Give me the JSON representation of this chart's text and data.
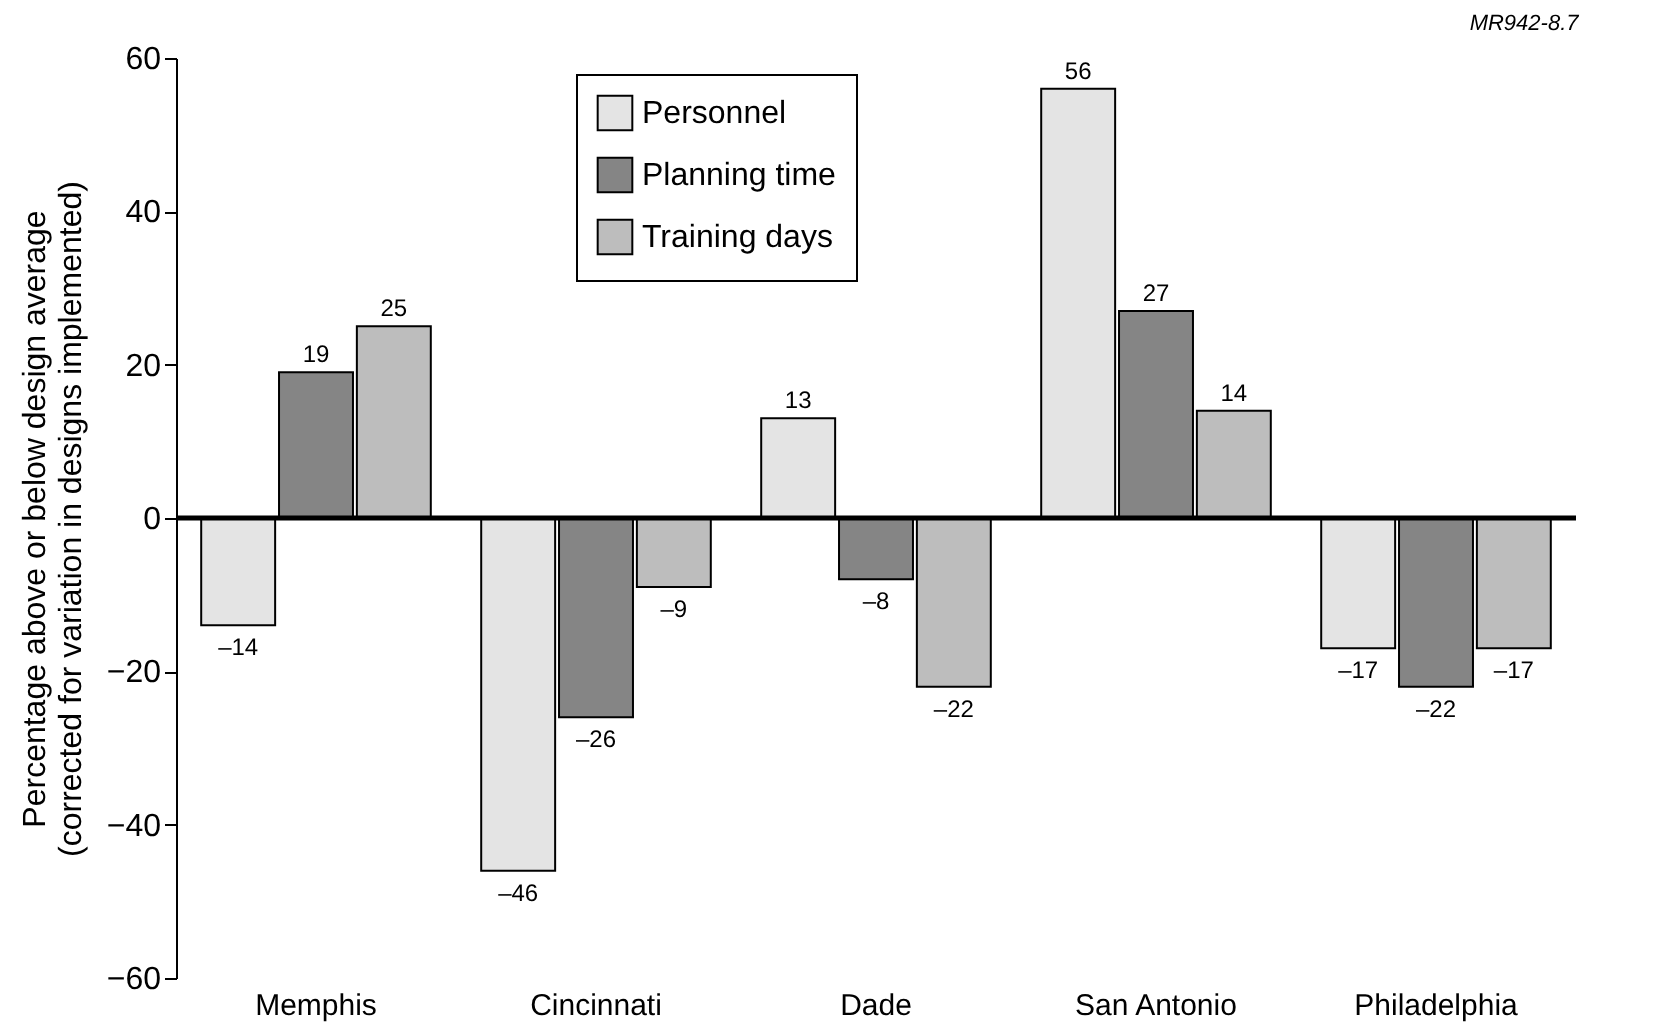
{
  "chart_data": {
    "type": "bar",
    "ylabel": "Percentage above or below design average\n(corrected for variation in designs implemented)",
    "categories": [
      "Memphis",
      "Cincinnati",
      "Dade",
      "San Antonio",
      "Philadelphia"
    ],
    "series": [
      {
        "name": "Personnel",
        "color": "#e4e4e4",
        "values": [
          -14,
          -46,
          13,
          56,
          -17
        ],
        "value_labels": [
          "–14",
          "–46",
          "13",
          "56",
          "–17"
        ]
      },
      {
        "name": "Planning time",
        "color": "#858585",
        "values": [
          19,
          -26,
          -8,
          27,
          -22
        ],
        "value_labels": [
          "19",
          "–26",
          "–8",
          "27",
          "–22"
        ]
      },
      {
        "name": "Training days",
        "color": "#bdbdbd",
        "values": [
          25,
          -9,
          -22,
          14,
          -17
        ],
        "value_labels": [
          "25",
          "–9",
          "–22",
          "14",
          "–17"
        ]
      }
    ],
    "ylim": [
      -60,
      60
    ],
    "yticks": [
      -60,
      -40,
      -20,
      0,
      20,
      40,
      60
    ],
    "grid": false,
    "legend": "top",
    "ref_lines": [
      {
        "axis": "y",
        "value": 0
      }
    ],
    "annotations": [
      "MR942-8.7"
    ]
  }
}
